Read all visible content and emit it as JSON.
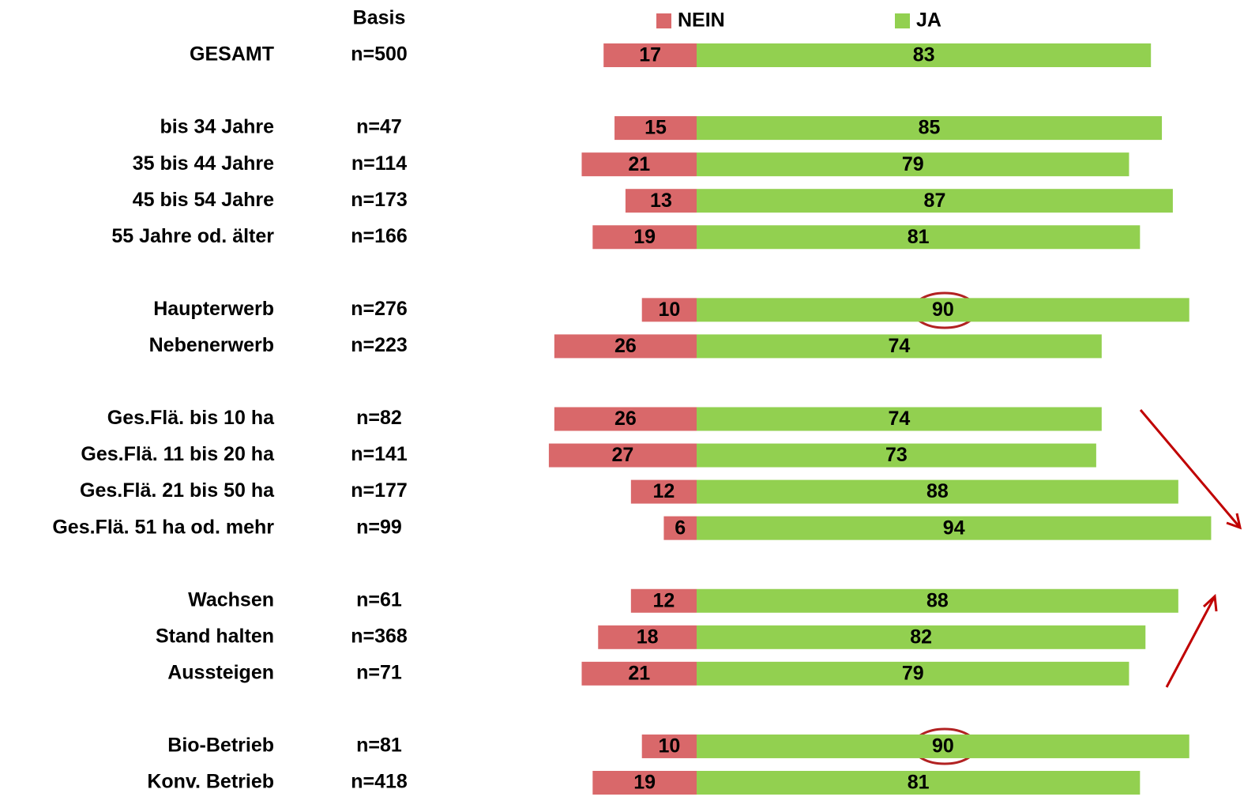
{
  "chart_data": {
    "type": "diverging_bar",
    "basis_header": "Basis",
    "categories": [
      "GESAMT",
      null,
      "bis 34 Jahre",
      "35 bis 44 Jahre",
      "45 bis 54 Jahre",
      "55 Jahre od. älter",
      null,
      "Haupterwerb",
      "Nebenerwerb",
      null,
      "Ges.Flä. bis 10 ha",
      "Ges.Flä. 11 bis 20 ha",
      "Ges.Flä. 21 bis 50 ha",
      "Ges.Flä. 51 ha od. mehr",
      null,
      "Wachsen",
      "Stand halten",
      "Aussteigen",
      null,
      "Bio-Betrieb",
      "Konv. Betrieb"
    ],
    "basis": [
      "n=500",
      null,
      "n=47",
      "n=114",
      "n=173",
      "n=166",
      null,
      "n=276",
      "n=223",
      null,
      "n=82",
      "n=141",
      "n=177",
      "n=99",
      null,
      "n=61",
      "n=368",
      "n=71",
      null,
      "n=81",
      "n=418"
    ],
    "series": [
      {
        "name": "NEIN",
        "color": "#d9686a",
        "direction": "left",
        "values": [
          17,
          null,
          15,
          21,
          13,
          19,
          null,
          10,
          26,
          null,
          26,
          27,
          12,
          6,
          null,
          12,
          18,
          21,
          null,
          10,
          19
        ]
      },
      {
        "name": "JA",
        "color": "#92d050",
        "direction": "right",
        "values": [
          83,
          null,
          85,
          79,
          87,
          81,
          null,
          90,
          74,
          null,
          74,
          73,
          88,
          94,
          null,
          88,
          82,
          79,
          null,
          90,
          81
        ]
      }
    ]
  }
}
